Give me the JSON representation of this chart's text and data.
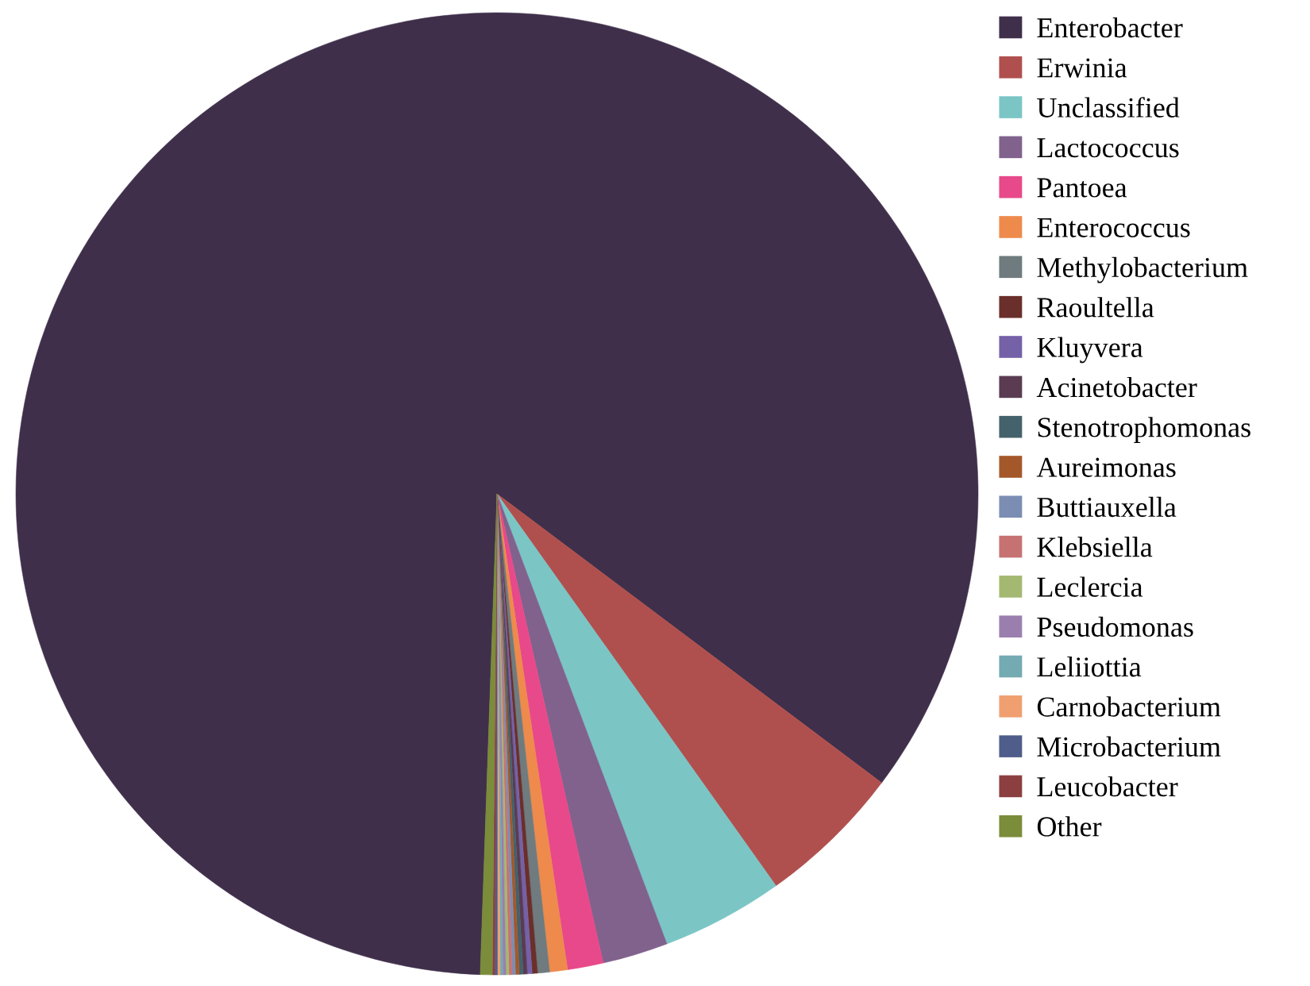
{
  "chart_data": {
    "type": "pie",
    "categories": [
      "Enterobacter",
      "Erwinia",
      "Unclassified",
      "Lactococcus",
      "Pantoea",
      "Enterococcus",
      "Methylobacterium",
      "Raoultella",
      "Kluyvera",
      "Acinetobacter",
      "Stenotrophomonas",
      "Aureimonas",
      "Buttiauxella",
      "Klebsiella",
      "Leclercia",
      "Pseudomonas",
      "Leliiottia",
      "Carnobacterium",
      "Microbacterium",
      "Leucobacter",
      "Other"
    ],
    "values": [
      84.7,
      4.9,
      4.1,
      2.2,
      1.2,
      0.6,
      0.4,
      0.18,
      0.16,
      0.14,
      0.13,
      0.12,
      0.11,
      0.11,
      0.1,
      0.1,
      0.09,
      0.09,
      0.09,
      0.08,
      0.4
    ],
    "colors": [
      "#3f2f4b",
      "#b0504e",
      "#7bc5c5",
      "#80628d",
      "#e8498a",
      "#ee8a4c",
      "#6f7b7e",
      "#6a2f2b",
      "#7461a8",
      "#5a3b52",
      "#44626b",
      "#a4582a",
      "#7c8db3",
      "#c77272",
      "#a4b871",
      "#9a7fae",
      "#74aab2",
      "#f0a070",
      "#4f5d8a",
      "#8c3f3f",
      "#7b8c3a"
    ],
    "legend": "right"
  }
}
